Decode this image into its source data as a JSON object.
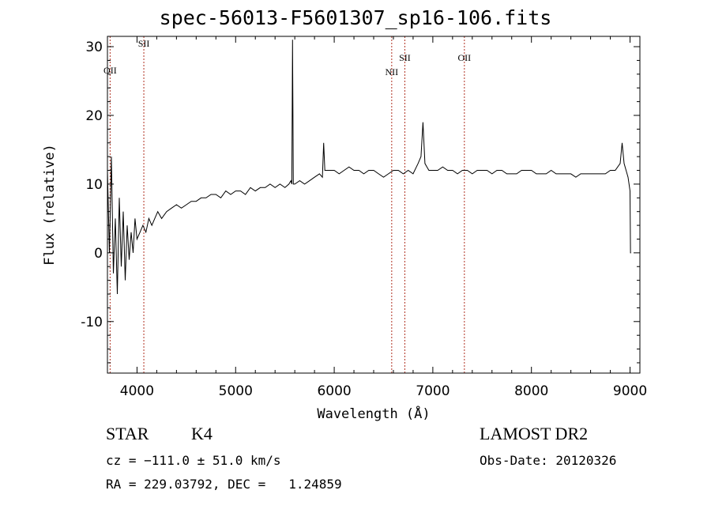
{
  "footer": {
    "obj_class": "STAR",
    "subclass": "K4",
    "survey": "LAMOST DR2",
    "cz": "cz = −111.0 ± 51.0 km/s",
    "obs_date": "Obs-Date: 20120326",
    "ra_dec": "RA = 229.03792, DEC =   1.24859"
  },
  "chart_data": {
    "type": "line",
    "title": "spec-56013-F5601307_sp16-106.fits",
    "xlabel": "Wavelength (Å)",
    "ylabel": "Flux (relative)",
    "xlim": [
      3700,
      9100
    ],
    "ylim": [
      -17.5,
      31.5
    ],
    "xticks": [
      4000,
      5000,
      6000,
      7000,
      8000,
      9000
    ],
    "yticks": [
      -10,
      0,
      10,
      20,
      30
    ],
    "line_color": "#000000",
    "marker_color": "#b03020",
    "lines": [
      {
        "label": "OII",
        "x": 3727
      },
      {
        "label": "SII",
        "x": 4069
      },
      {
        "label": "NII",
        "x": 6583
      },
      {
        "label": "SII",
        "x": 6716
      },
      {
        "label": "OII",
        "x": 7320
      }
    ],
    "series": [
      {
        "x": [
          3700,
          3720,
          3740,
          3760,
          3780,
          3800,
          3820,
          3840,
          3860,
          3880,
          3900,
          3920,
          3940,
          3960,
          3980,
          4000,
          4030,
          4060,
          4090,
          4120,
          4150,
          4180,
          4210,
          4250,
          4300,
          4350,
          4400,
          4450,
          4500,
          4550,
          4600,
          4650,
          4700,
          4750,
          4800,
          4850,
          4900,
          4950,
          5000,
          5050,
          5100,
          5150,
          5200,
          5250,
          5300,
          5350,
          5400,
          5450,
          5500,
          5540,
          5560,
          5570,
          5577,
          5585,
          5600,
          5650,
          5700,
          5750,
          5800,
          5850,
          5880,
          5893,
          5905,
          5950,
          6000,
          6050,
          6100,
          6150,
          6200,
          6250,
          6300,
          6350,
          6400,
          6450,
          6500,
          6550,
          6600,
          6650,
          6700,
          6750,
          6800,
          6850,
          6880,
          6900,
          6920,
          6940,
          6960,
          7000,
          7050,
          7100,
          7150,
          7200,
          7250,
          7300,
          7350,
          7400,
          7450,
          7500,
          7550,
          7600,
          7650,
          7700,
          7750,
          7800,
          7850,
          7900,
          7950,
          8000,
          8050,
          8100,
          8150,
          8200,
          8250,
          8300,
          8350,
          8400,
          8450,
          8500,
          8550,
          8600,
          8650,
          8700,
          8750,
          8800,
          8850,
          8900,
          8920,
          8940,
          8960,
          8980,
          9000,
          9005,
          9010
        ],
        "values": [
          12,
          0,
          14,
          -3,
          5,
          -6,
          8,
          -2,
          6,
          -4,
          4,
          -1,
          3,
          0,
          5,
          2,
          3,
          4,
          3,
          5,
          4,
          5,
          6,
          5,
          6,
          6.5,
          7,
          6.5,
          7,
          7.5,
          7.5,
          8,
          8,
          8.5,
          8.5,
          8,
          9,
          8.5,
          9,
          9,
          8.5,
          9.5,
          9,
          9.5,
          9.5,
          10,
          9.5,
          10,
          9.5,
          10,
          10.5,
          10,
          31,
          10,
          10,
          10.5,
          10,
          10.5,
          11,
          11.5,
          11,
          16,
          12,
          12,
          12,
          11.5,
          12,
          12.5,
          12,
          12,
          11.5,
          12,
          12,
          11.5,
          11,
          11.5,
          12,
          12,
          11.5,
          12,
          11.5,
          13,
          14,
          19,
          13,
          12.5,
          12,
          12,
          12,
          12.5,
          12,
          12,
          11.5,
          12,
          12,
          11.5,
          12,
          12,
          12,
          11.5,
          12,
          12,
          11.5,
          11.5,
          11.5,
          12,
          12,
          12,
          11.5,
          11.5,
          11.5,
          12,
          11.5,
          11.5,
          11.5,
          11.5,
          11,
          11.5,
          11.5,
          11.5,
          11.5,
          11.5,
          11.5,
          12,
          12,
          13,
          16,
          13,
          12,
          11,
          9,
          0,
          0
        ]
      }
    ]
  }
}
